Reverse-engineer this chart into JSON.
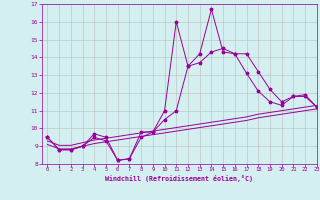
{
  "x": [
    0,
    1,
    2,
    3,
    4,
    5,
    6,
    7,
    8,
    9,
    10,
    11,
    12,
    13,
    14,
    15,
    16,
    17,
    18,
    19,
    20,
    21,
    22,
    23
  ],
  "line1": [
    9.5,
    8.8,
    8.8,
    9.0,
    9.7,
    9.5,
    8.2,
    8.3,
    9.8,
    9.8,
    11.0,
    16.0,
    13.5,
    13.7,
    14.3,
    14.5,
    14.2,
    13.1,
    12.1,
    11.5,
    11.3,
    11.8,
    11.8,
    11.2
  ],
  "line2": [
    9.5,
    8.8,
    8.8,
    9.0,
    9.5,
    9.3,
    8.2,
    8.3,
    9.5,
    9.8,
    10.5,
    11.0,
    13.5,
    14.2,
    16.7,
    14.3,
    14.2,
    14.2,
    13.2,
    12.2,
    11.5,
    11.8,
    11.9,
    11.2
  ],
  "line3": [
    9.3,
    9.05,
    9.05,
    9.2,
    9.35,
    9.45,
    9.55,
    9.65,
    9.75,
    9.85,
    9.95,
    10.05,
    10.15,
    10.25,
    10.35,
    10.45,
    10.55,
    10.65,
    10.8,
    10.9,
    11.0,
    11.1,
    11.2,
    11.3
  ],
  "line4": [
    9.1,
    8.85,
    8.85,
    9.0,
    9.15,
    9.25,
    9.35,
    9.45,
    9.55,
    9.65,
    9.75,
    9.85,
    9.95,
    10.05,
    10.15,
    10.25,
    10.35,
    10.45,
    10.6,
    10.7,
    10.8,
    10.9,
    11.0,
    11.1
  ],
  "color": "#990099",
  "bg_color": "#d4efef",
  "grid_color": "#bbbbbb",
  "xlabel": "Windchill (Refroidissement éolien,°C)",
  "ylim": [
    8,
    17
  ],
  "xlim": [
    -0.5,
    23
  ],
  "yticks": [
    8,
    9,
    10,
    11,
    12,
    13,
    14,
    15,
    16,
    17
  ],
  "xticks": [
    0,
    1,
    2,
    3,
    4,
    5,
    6,
    7,
    8,
    9,
    10,
    11,
    12,
    13,
    14,
    15,
    16,
    17,
    18,
    19,
    20,
    21,
    22,
    23
  ]
}
